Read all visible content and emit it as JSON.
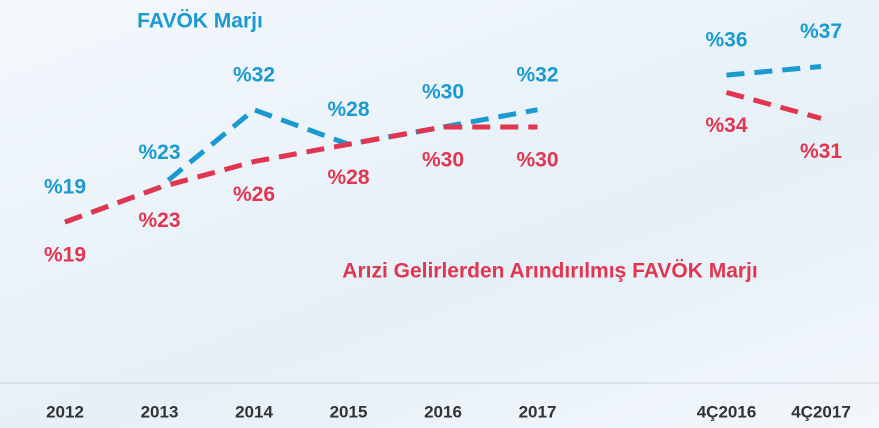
{
  "chart_data": {
    "type": "line",
    "categories": [
      "2012",
      "2013",
      "2014",
      "2015",
      "2016",
      "2017",
      null,
      "4Ç2016",
      "4Ç2017"
    ],
    "series": [
      {
        "name": "FAVÖK Marjı",
        "color": "#1b9ad2",
        "values": [
          19,
          23,
          32,
          28,
          30,
          32,
          null,
          36,
          37
        ],
        "value_labels": [
          "%19",
          "%23",
          "%32",
          "%28",
          "%30",
          "%32",
          null,
          "%36",
          "%37"
        ]
      },
      {
        "name": "Arızi Gelirlerden Arındırılmış FAVÖK Marjı",
        "color": "#e2354f",
        "values": [
          19,
          23,
          26,
          28,
          30,
          30,
          null,
          34,
          31
        ],
        "value_labels": [
          "%19",
          "%23",
          "%26",
          "%28",
          "%30",
          "%30",
          null,
          "%34",
          "%31"
        ]
      }
    ]
  }
}
